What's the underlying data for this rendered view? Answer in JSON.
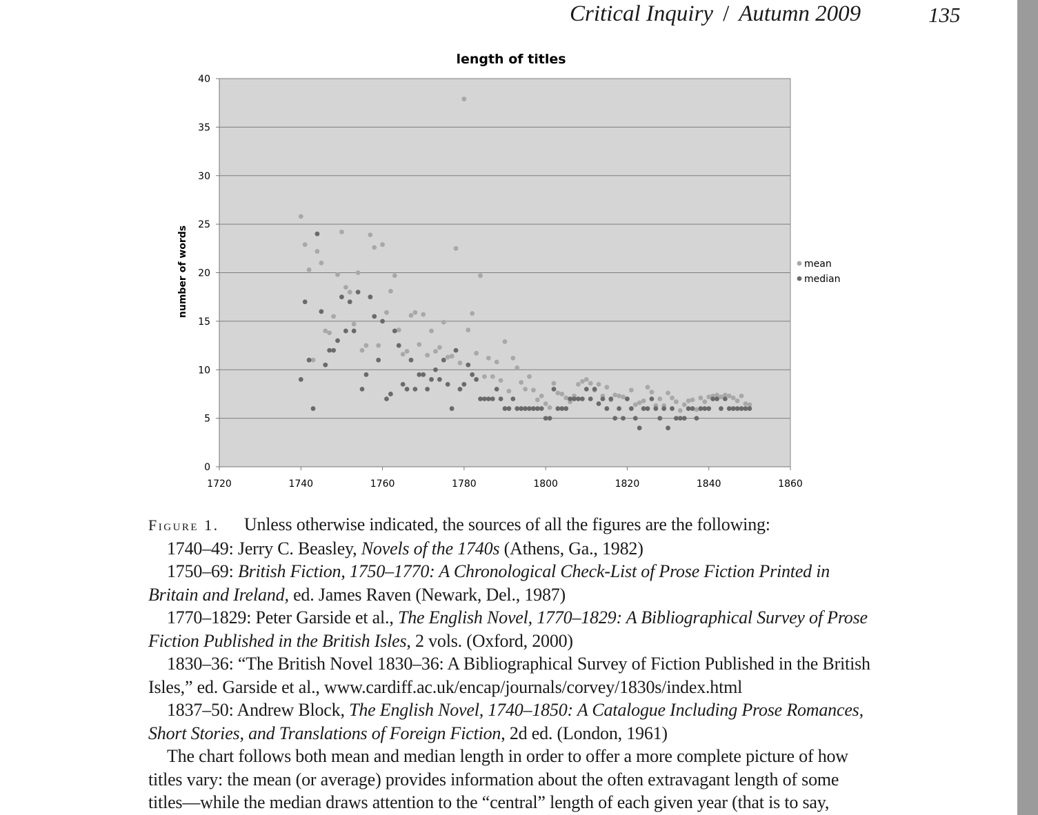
{
  "header": {
    "journal": "Critical Inquiry",
    "separator": "/",
    "issue": "Autumn 2009",
    "page_number": "135"
  },
  "chart_data": {
    "type": "scatter",
    "title": "length of titles",
    "xlabel": "",
    "ylabel": "number of words",
    "xlim": [
      1720,
      1860
    ],
    "ylim": [
      0,
      40
    ],
    "x_ticks": [
      "1720",
      "1740",
      "1760",
      "1780",
      "1800",
      "1820",
      "1840",
      "1860"
    ],
    "y_ticks": [
      "0",
      "5",
      "10",
      "15",
      "20",
      "25",
      "30",
      "35",
      "40"
    ],
    "grid": true,
    "legend_position": "right",
    "series": [
      {
        "name": "mean",
        "color": "#a8a8a8",
        "x": [
          1740,
          1741,
          1742,
          1743,
          1744,
          1745,
          1746,
          1747,
          1748,
          1749,
          1750,
          1751,
          1752,
          1753,
          1754,
          1755,
          1756,
          1757,
          1758,
          1759,
          1760,
          1761,
          1762,
          1763,
          1764,
          1765,
          1766,
          1767,
          1768,
          1769,
          1770,
          1771,
          1772,
          1773,
          1774,
          1775,
          1776,
          1777,
          1778,
          1779,
          1780,
          1781,
          1782,
          1783,
          1784,
          1785,
          1786,
          1787,
          1788,
          1789,
          1790,
          1791,
          1792,
          1793,
          1794,
          1795,
          1796,
          1797,
          1798,
          1799,
          1800,
          1801,
          1802,
          1803,
          1804,
          1805,
          1806,
          1807,
          1808,
          1809,
          1810,
          1811,
          1812,
          1813,
          1814,
          1815,
          1816,
          1817,
          1818,
          1819,
          1820,
          1821,
          1822,
          1823,
          1824,
          1825,
          1826,
          1827,
          1828,
          1829,
          1830,
          1831,
          1832,
          1833,
          1834,
          1835,
          1836,
          1837,
          1838,
          1839,
          1840,
          1841,
          1842,
          1843,
          1844,
          1845,
          1846,
          1847,
          1848,
          1849,
          1850
        ],
        "y": [
          25.8,
          22.9,
          20.3,
          11.0,
          22.2,
          21.0,
          14.0,
          13.8,
          15.5,
          19.8,
          24.2,
          18.5,
          18.0,
          14.7,
          20.0,
          12.0,
          12.5,
          23.9,
          22.6,
          12.5,
          22.9,
          15.9,
          18.1,
          19.7,
          14.1,
          11.6,
          11.9,
          15.6,
          15.9,
          12.6,
          15.7,
          11.5,
          14.0,
          11.9,
          12.3,
          14.9,
          11.3,
          11.4,
          22.5,
          10.7,
          37.9,
          14.1,
          15.8,
          11.7,
          19.7,
          9.3,
          11.2,
          9.3,
          10.8,
          8.9,
          12.9,
          7.8,
          11.2,
          10.2,
          8.7,
          8.0,
          9.3,
          7.9,
          6.9,
          7.3,
          6.5,
          6.1,
          8.6,
          7.6,
          7.5,
          7.1,
          6.7,
          7.3,
          8.5,
          8.8,
          9.0,
          8.6,
          7.9,
          8.5,
          7.3,
          8.2,
          6.9,
          7.4,
          7.3,
          7.2,
          7.0,
          7.9,
          6.4,
          6.6,
          6.8,
          8.2,
          7.7,
          6.3,
          7.0,
          6.3,
          7.6,
          7.1,
          6.7,
          5.8,
          6.4,
          6.8,
          6.9,
          5.9,
          7.1,
          6.7,
          7.2,
          7.3,
          7.4,
          7.2,
          7.4,
          7.3,
          7.1,
          6.8,
          7.3,
          6.5,
          6.4
        ]
      },
      {
        "name": "median",
        "color": "#6a6a6a",
        "x": [
          1740,
          1741,
          1742,
          1743,
          1744,
          1745,
          1746,
          1747,
          1748,
          1749,
          1750,
          1751,
          1752,
          1753,
          1754,
          1755,
          1756,
          1757,
          1758,
          1759,
          1760,
          1761,
          1762,
          1763,
          1764,
          1765,
          1766,
          1767,
          1768,
          1769,
          1770,
          1771,
          1772,
          1773,
          1774,
          1775,
          1776,
          1777,
          1778,
          1779,
          1780,
          1781,
          1782,
          1783,
          1784,
          1785,
          1786,
          1787,
          1788,
          1789,
          1790,
          1791,
          1792,
          1793,
          1794,
          1795,
          1796,
          1797,
          1798,
          1799,
          1800,
          1801,
          1802,
          1803,
          1804,
          1805,
          1806,
          1807,
          1808,
          1809,
          1810,
          1811,
          1812,
          1813,
          1814,
          1815,
          1816,
          1817,
          1818,
          1819,
          1820,
          1821,
          1822,
          1823,
          1824,
          1825,
          1826,
          1827,
          1828,
          1829,
          1830,
          1831,
          1832,
          1833,
          1834,
          1835,
          1836,
          1837,
          1838,
          1839,
          1840,
          1841,
          1842,
          1843,
          1844,
          1845,
          1846,
          1847,
          1848,
          1849,
          1850
        ],
        "y": [
          9,
          17,
          11,
          6,
          24,
          16,
          10.5,
          12,
          12,
          13,
          17.5,
          14,
          17,
          14,
          18,
          8,
          9.5,
          17.5,
          15.5,
          11,
          15,
          7,
          7.5,
          14,
          12.5,
          8.5,
          8,
          11,
          8,
          9.5,
          9.5,
          8,
          9,
          10,
          9,
          11,
          8.5,
          6,
          12,
          8,
          8.5,
          10.5,
          9.5,
          9,
          7,
          7,
          7,
          7,
          8,
          7,
          6,
          6,
          7,
          6,
          6,
          6,
          6,
          6,
          6,
          6,
          5,
          5,
          8,
          6,
          6,
          6,
          7,
          7,
          7,
          7,
          8,
          7,
          8,
          6.5,
          7,
          6,
          7,
          5,
          6,
          5,
          7,
          6,
          5,
          4,
          6,
          6,
          7,
          6,
          5,
          6,
          4,
          6,
          5,
          5,
          5,
          6,
          6,
          5,
          6,
          6,
          6,
          7,
          7,
          6,
          7,
          6,
          6,
          6,
          6,
          6,
          6
        ]
      }
    ]
  },
  "caption": {
    "label": "Figure 1.",
    "intro": "Unless otherwise indicated, the sources of all the figures are the following:",
    "s1_years": "1740–49: Jerry C. Beasley,",
    "s1_title": "Novels of the 1740s",
    "s1_rest": "(Athens, Ga., 1982)",
    "s2_years": "1750–69:",
    "s2_title": "British Fiction, 1750–1770: A Chronological Check-List of Prose Fiction Printed in Britain and Ireland,",
    "s2_rest": "ed. James Raven (Newark, Del., 1987)",
    "s3_years": "1770–1829: Peter Garside et al.,",
    "s3_title": "The English Novel, 1770–1829: A Bibliographical Survey of Prose Fiction Published in the British Isles",
    "s3_rest": ", 2 vols. (Oxford, 2000)",
    "s4_text": "1830–36: “The British Novel 1830–36: A Bibliographical Survey of Fiction Published in the British Isles,” ed. Garside et al., www.cardiff.ac.uk/encap/journals/corvey/1830s/index.html",
    "s5_years": "1837–50: Andrew Block,",
    "s5_title": "The English Novel, 1740–1850: A Catalogue Including Prose Romances, Short Stories, and Translations of Foreign Fiction",
    "s5_rest": ", 2d ed. (London, 1961)",
    "note": "The chart follows both mean and median length in order to offer a more complete picture of how titles vary: the mean (or average) provides information about the often extravagant length of some titles—while the median draws attention to the “central” length of each given year (that is to say,"
  }
}
